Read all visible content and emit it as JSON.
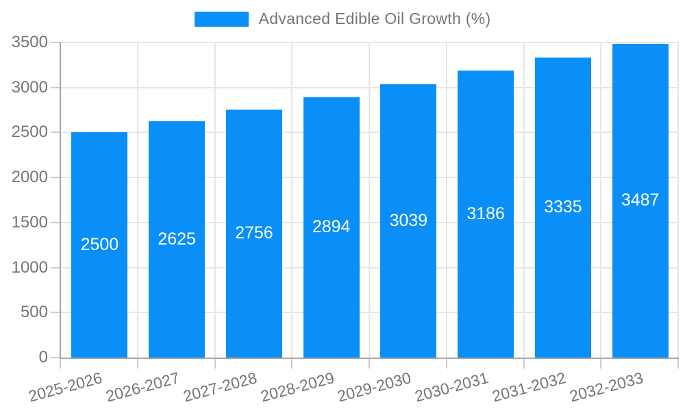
{
  "legend": {
    "label": "Advanced Edible Oil Growth (%)"
  },
  "colors": {
    "bar": "#0a8ff9",
    "grid": "#e6e6e6",
    "axis": "#a6a6a6",
    "tick": "#cccccc",
    "text": "#757575",
    "bar_label": "#ffffff",
    "background": "#ffffff"
  },
  "chart_data": {
    "type": "bar",
    "title": "Advanced Edible Oil Growth (%)",
    "categories": [
      "2025-2026",
      "2026-2027",
      "2027-2028",
      "2028-2029",
      "2029-2030",
      "2030-2031",
      "2031-2032",
      "2032-2033"
    ],
    "values": [
      2500,
      2625,
      2756,
      2894,
      3039,
      3186,
      3335,
      3487
    ],
    "xlabel": "",
    "ylabel": "",
    "ylim": [
      0,
      3500
    ],
    "yticks": [
      0,
      500,
      1000,
      1500,
      2000,
      2500,
      3000,
      3500
    ],
    "grid": true,
    "legend_position": "top",
    "bar_labels": true,
    "xtick_rotation_deg": -15
  }
}
